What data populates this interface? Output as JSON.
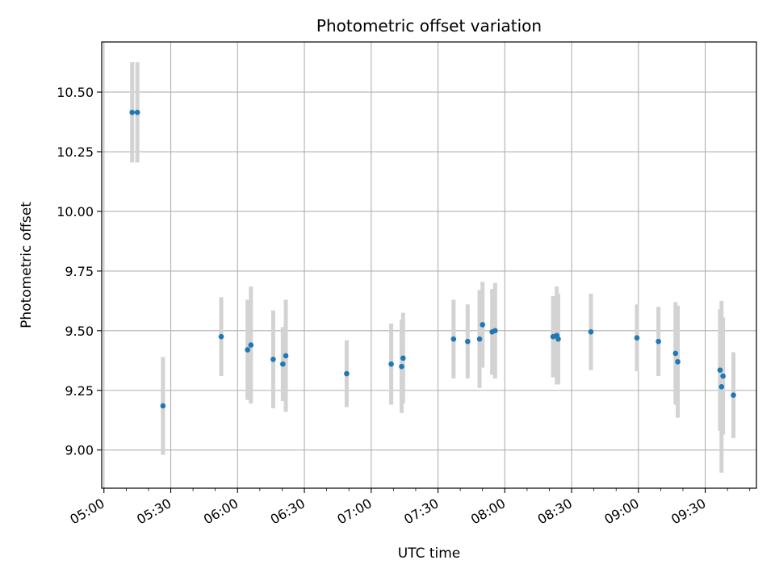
{
  "chart_data": {
    "type": "scatter",
    "title": "Photometric offset variation",
    "xlabel": "UTC time",
    "ylabel": "Photometric offset",
    "x_axis_type": "time",
    "xlim": [
      "04:59",
      "09:53"
    ],
    "ylim": [
      8.84,
      10.71
    ],
    "x_ticks": [
      "05:00",
      "05:30",
      "06:00",
      "06:30",
      "07:00",
      "07:30",
      "08:00",
      "08:30",
      "09:00",
      "09:30"
    ],
    "y_ticks": [
      9.0,
      9.25,
      9.5,
      9.75,
      10.0,
      10.25,
      10.5
    ],
    "grid": true,
    "marker_color": "#1f77b4",
    "errorbar_color": "#d3d3d3",
    "points": [
      {
        "time": "05:12:40",
        "value": 10.415,
        "error": 0.21
      },
      {
        "time": "05:15:00",
        "value": 10.415,
        "error": 0.21
      },
      {
        "time": "05:26:30",
        "value": 9.185,
        "error": 0.205
      },
      {
        "time": "05:52:40",
        "value": 9.475,
        "error": 0.165
      },
      {
        "time": "06:04:30",
        "value": 9.42,
        "error": 0.21
      },
      {
        "time": "06:06:00",
        "value": 9.44,
        "error": 0.245
      },
      {
        "time": "06:16:00",
        "value": 9.38,
        "error": 0.205
      },
      {
        "time": "06:20:20",
        "value": 9.36,
        "error": 0.155
      },
      {
        "time": "06:21:40",
        "value": 9.395,
        "error": 0.235
      },
      {
        "time": "06:49:00",
        "value": 9.32,
        "error": 0.14
      },
      {
        "time": "07:09:00",
        "value": 9.36,
        "error": 0.17
      },
      {
        "time": "07:13:40",
        "value": 9.35,
        "error": 0.195
      },
      {
        "time": "07:14:20",
        "value": 9.385,
        "error": 0.19
      },
      {
        "time": "07:37:00",
        "value": 9.465,
        "error": 0.165
      },
      {
        "time": "07:43:20",
        "value": 9.455,
        "error": 0.155
      },
      {
        "time": "07:48:40",
        "value": 9.465,
        "error": 0.205
      },
      {
        "time": "07:50:00",
        "value": 9.525,
        "error": 0.18
      },
      {
        "time": "07:54:20",
        "value": 9.495,
        "error": 0.18
      },
      {
        "time": "07:55:40",
        "value": 9.5,
        "error": 0.2
      },
      {
        "time": "08:21:40",
        "value": 9.475,
        "error": 0.17
      },
      {
        "time": "08:23:20",
        "value": 9.48,
        "error": 0.205
      },
      {
        "time": "08:24:00",
        "value": 9.465,
        "error": 0.19
      },
      {
        "time": "08:38:40",
        "value": 9.495,
        "error": 0.16
      },
      {
        "time": "08:59:20",
        "value": 9.47,
        "error": 0.14
      },
      {
        "time": "09:09:00",
        "value": 9.455,
        "error": 0.145
      },
      {
        "time": "09:16:40",
        "value": 9.405,
        "error": 0.215
      },
      {
        "time": "09:17:40",
        "value": 9.37,
        "error": 0.235
      },
      {
        "time": "09:36:40",
        "value": 9.335,
        "error": 0.255
      },
      {
        "time": "09:37:20",
        "value": 9.265,
        "error": 0.36
      },
      {
        "time": "09:38:00",
        "value": 9.31,
        "error": 0.245
      },
      {
        "time": "09:42:40",
        "value": 9.23,
        "error": 0.18
      }
    ]
  }
}
